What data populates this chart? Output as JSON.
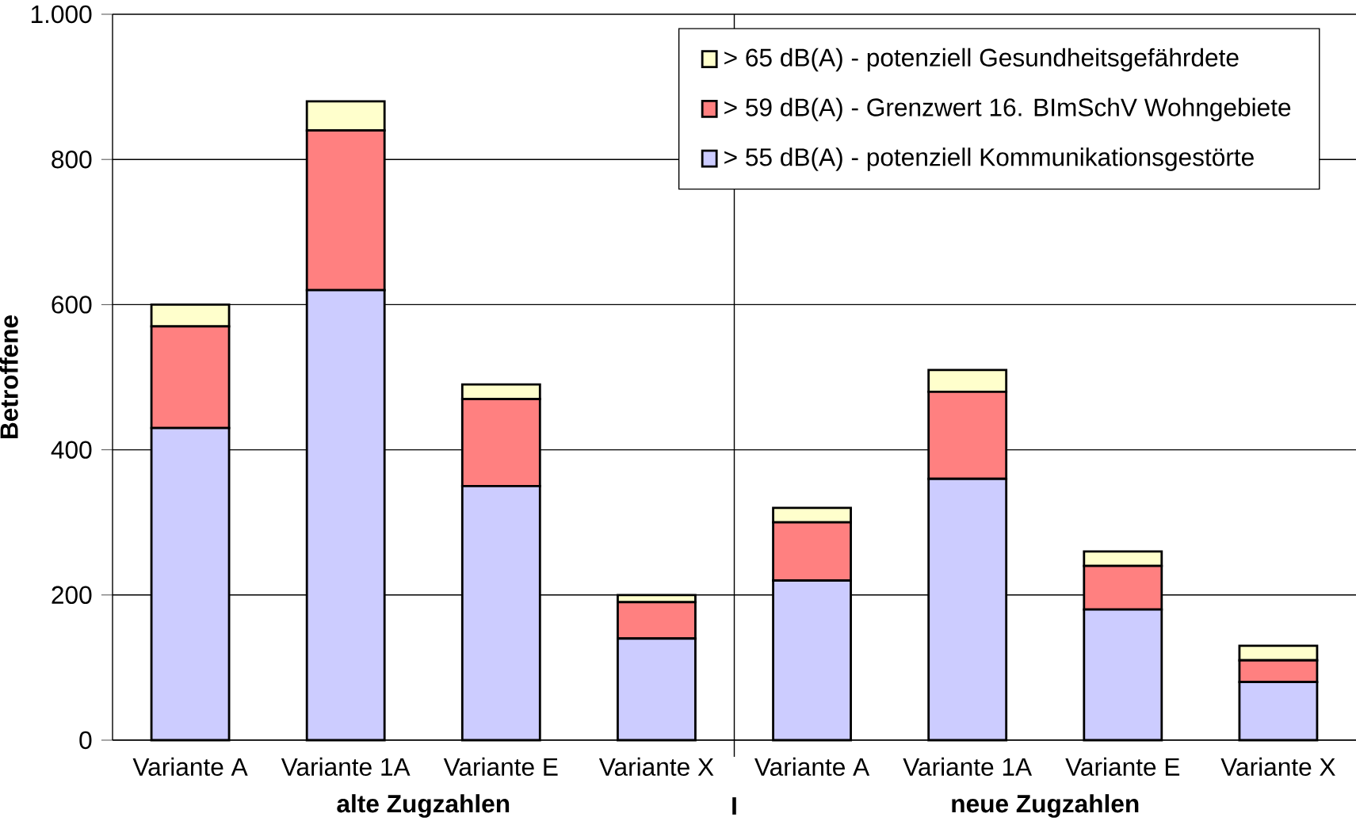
{
  "chart_data": {
    "type": "bar",
    "stacked": true,
    "ylabel": "Betroffene",
    "categories": [
      "Variante A",
      "Variante 1A",
      "Variante E",
      "Variante X",
      "Variante A",
      "Variante 1A",
      "Variante E",
      "Variante X"
    ],
    "series": [
      {
        "name": "> 55 dB(A) - potenziell Kommunikationsgestörte",
        "color": "#ccccff",
        "values": [
          430,
          620,
          350,
          140,
          220,
          360,
          180,
          80
        ]
      },
      {
        "name": "> 59 dB(A) - Grenzwert 16. BImSchV Wohngebiete",
        "color": "#ff8080",
        "values": [
          140,
          220,
          120,
          50,
          80,
          120,
          60,
          30
        ]
      },
      {
        "name": "> 65 dB(A) - potenziell Gesundheitsgefährdete",
        "color": "#ffffcc",
        "values": [
          30,
          40,
          20,
          10,
          20,
          30,
          20,
          20
        ]
      }
    ],
    "ylim": [
      0,
      1000
    ],
    "yticks": [
      0,
      200,
      400,
      600,
      800,
      {
        "value": 1000,
        "label": "1.000"
      }
    ],
    "grid": "y",
    "legend": "top right",
    "annotations": [
      "alte Zugzahlen",
      "I",
      "neue Zugzahlen"
    ]
  }
}
